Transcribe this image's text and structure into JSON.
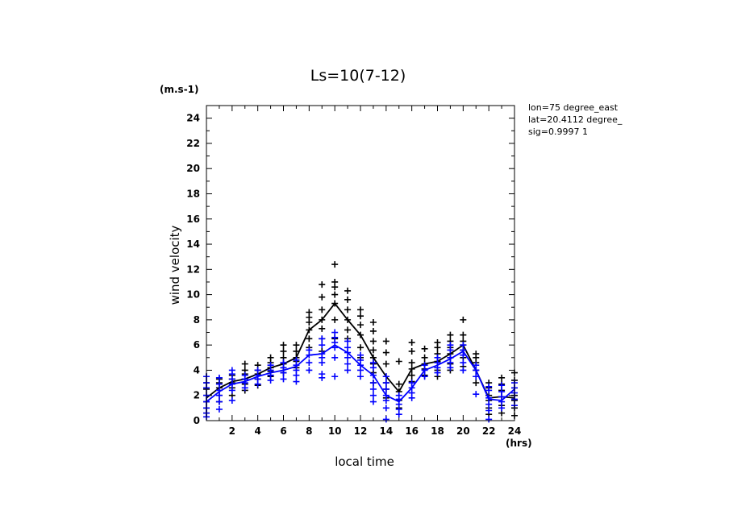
{
  "chart_data": {
    "type": "scatter",
    "title": "Ls=10(7-12)",
    "xlabel": "local time",
    "ylabel": "wind velocity",
    "x_unit": "(hrs)",
    "y_unit": "(m.s-1)",
    "xlim": [
      0,
      24
    ],
    "ylim": [
      0,
      25
    ],
    "x_ticks": [
      "2",
      "4",
      "6",
      "8",
      "10",
      "12",
      "14",
      "16",
      "18",
      "20",
      "22",
      "24"
    ],
    "y_ticks": [
      "0",
      "2",
      "4",
      "6",
      "8",
      "10",
      "12",
      "14",
      "16",
      "18",
      "20",
      "22",
      "24"
    ],
    "info": [
      "lon=75 degree_east",
      "lat=20.4112 degree_",
      "sig=0.9997 1"
    ],
    "grid": false,
    "series": [
      {
        "color": "#000000",
        "x": [
          0,
          1,
          2,
          3,
          4,
          5,
          6,
          7,
          8,
          9,
          10,
          11,
          12,
          13,
          14,
          15,
          16,
          17,
          18,
          19,
          20,
          21,
          22,
          23,
          24
        ],
        "mean": [
          1.8,
          2.6,
          3.1,
          3.3,
          3.7,
          4.2,
          4.5,
          5.0,
          7.2,
          8.0,
          9.3,
          8.0,
          6.8,
          5.0,
          3.5,
          2.3,
          4.1,
          4.5,
          4.7,
          5.3,
          6.0,
          4.0,
          1.8,
          1.9,
          1.8
        ],
        "scatter": [
          [
            0.6,
            1.0,
            1.5,
            2.0,
            2.5,
            3.0,
            3.5
          ],
          [
            1.5,
            2.0,
            2.6,
            3.0,
            3.3
          ],
          [
            2.0,
            2.6,
            3.0,
            3.3,
            3.6
          ],
          [
            2.4,
            2.9,
            3.3,
            3.7,
            4.0,
            4.5
          ],
          [
            2.8,
            3.3,
            3.7,
            4.0,
            4.4
          ],
          [
            3.5,
            3.9,
            4.2,
            4.6,
            5.0
          ],
          [
            3.8,
            4.2,
            4.5,
            5.0,
            5.5,
            6.0
          ],
          [
            4.2,
            4.7,
            5.0,
            5.5,
            6.0
          ],
          [
            5.8,
            6.5,
            7.2,
            7.8,
            8.2,
            8.6
          ],
          [
            5.5,
            6.5,
            7.3,
            8.0,
            8.8,
            9.8,
            10.8
          ],
          [
            6.5,
            8.0,
            9.3,
            10.0,
            10.6,
            11.0,
            12.4
          ],
          [
            6.5,
            7.2,
            8.0,
            8.8,
            9.6,
            10.3
          ],
          [
            5.0,
            5.8,
            6.8,
            7.6,
            8.3,
            8.8
          ],
          [
            3.0,
            3.8,
            4.5,
            5.0,
            5.6,
            6.3,
            7.1,
            7.8
          ],
          [
            1.8,
            2.5,
            3.0,
            3.5,
            4.5,
            5.4,
            6.3
          ],
          [
            1.0,
            1.6,
            2.3,
            2.9,
            4.7
          ],
          [
            3.1,
            3.6,
            4.1,
            4.6,
            5.5,
            6.2
          ],
          [
            3.6,
            4.1,
            4.5,
            5.0,
            5.7
          ],
          [
            3.5,
            4.0,
            4.7,
            5.3,
            5.8,
            6.2
          ],
          [
            4.0,
            4.5,
            5.0,
            5.3,
            5.8,
            6.3,
            6.8
          ],
          [
            4.3,
            5.0,
            5.6,
            6.0,
            6.3,
            6.8,
            8.0
          ],
          [
            3.0,
            3.5,
            4.0,
            4.6,
            5.0,
            5.3
          ],
          [
            0.5,
            1.0,
            1.6,
            2.0,
            2.6,
            3.0
          ],
          [
            0.6,
            1.2,
            1.9,
            2.4,
            2.9,
            3.4
          ],
          [
            0.4,
            1.0,
            1.6,
            2.0,
            2.6,
            3.2,
            3.8
          ]
        ]
      },
      {
        "color": "#0000ff",
        "x": [
          0,
          1,
          2,
          3,
          4,
          5,
          6,
          7,
          8,
          9,
          10,
          11,
          12,
          13,
          14,
          15,
          16,
          17,
          18,
          19,
          20,
          21,
          22,
          23,
          24
        ],
        "mean": [
          1.5,
          2.3,
          2.9,
          3.1,
          3.5,
          3.8,
          4.0,
          4.3,
          5.2,
          5.3,
          6.0,
          5.4,
          4.4,
          3.6,
          2.0,
          1.5,
          2.6,
          4.0,
          4.4,
          4.9,
          5.5,
          4.0,
          1.7,
          1.6,
          2.5
        ],
        "scatter": [
          [
            0.3,
            0.6,
            1.0,
            1.5,
            2.0,
            2.6,
            3.0,
            3.5
          ],
          [
            0.9,
            1.5,
            2.0,
            2.4,
            2.9,
            3.4
          ],
          [
            1.6,
            2.4,
            2.9,
            3.3,
            3.7,
            4.0
          ],
          [
            2.6,
            3.0,
            3.3,
            3.6
          ],
          [
            2.9,
            3.3,
            3.6,
            4.0
          ],
          [
            3.2,
            3.6,
            4.0,
            4.4
          ],
          [
            3.3,
            3.8,
            4.2,
            4.6
          ],
          [
            3.1,
            3.6,
            4.0,
            4.4,
            4.8
          ],
          [
            4.0,
            4.6,
            5.2,
            5.6
          ],
          [
            3.4,
            3.7,
            4.6,
            5.0,
            5.3,
            6.0,
            6.5
          ],
          [
            3.5,
            5.0,
            5.8,
            6.2,
            6.6,
            7.0
          ],
          [
            4.0,
            4.5,
            5.0,
            5.4,
            5.8,
            6.3
          ],
          [
            3.5,
            4.0,
            4.4,
            4.8,
            5.2
          ],
          [
            1.5,
            2.0,
            2.5,
            3.0,
            3.6,
            4.2,
            4.6
          ],
          [
            0.1,
            1.0,
            1.6,
            2.0,
            2.5,
            3.0,
            3.5
          ],
          [
            0.5,
            0.9,
            1.3,
            1.7,
            2.0
          ],
          [
            1.8,
            2.2,
            2.6,
            3.0
          ],
          [
            3.5,
            4.0,
            4.4
          ],
          [
            3.8,
            4.2,
            4.6,
            5.0
          ],
          [
            4.2,
            4.6,
            5.0,
            5.6,
            6.0
          ],
          [
            4.0,
            4.6,
            5.2,
            5.6,
            6.0
          ],
          [
            2.1,
            3.5,
            4.0,
            4.4
          ],
          [
            0.1,
            0.8,
            1.3,
            1.8,
            2.4,
            2.7
          ],
          [
            1.0,
            1.5,
            1.9,
            2.3,
            2.8
          ],
          [
            1.2,
            1.7,
            2.2,
            2.6,
            3.0
          ]
        ]
      }
    ]
  }
}
